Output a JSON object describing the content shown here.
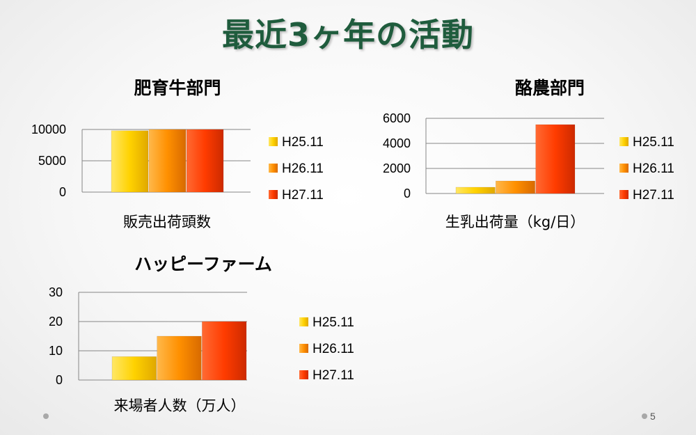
{
  "slide": {
    "title": "最近3ヶ年の活動",
    "page_number": "5"
  },
  "colors": {
    "title": "#1f5c3d",
    "series": [
      "#ffd200",
      "#ff9000",
      "#ff3c00"
    ]
  },
  "chart_data": [
    {
      "type": "bar",
      "title": "肥育牛部門",
      "xlabel": "販売出荷頭数",
      "ylabel": "",
      "ylim": [
        0,
        10000
      ],
      "yticks": [
        "0",
        "5000",
        "10000"
      ],
      "ytick_values": [
        0,
        5000,
        10000
      ],
      "categories": [
        "販売出荷頭数"
      ],
      "series": [
        {
          "name": "H25.11",
          "values": [
            9800
          ]
        },
        {
          "name": "H26.11",
          "values": [
            10000
          ]
        },
        {
          "name": "H27.11",
          "values": [
            10000
          ]
        }
      ],
      "legend": "right",
      "grid": true
    },
    {
      "type": "bar",
      "title": "酪農部門",
      "xlabel": "生乳出荷量（kg/日）",
      "ylabel": "",
      "ylim": [
        0,
        6000
      ],
      "yticks": [
        "0",
        "2000",
        "4000",
        "6000"
      ],
      "ytick_values": [
        0,
        2000,
        4000,
        6000
      ],
      "categories": [
        "生乳出荷量（kg/日）"
      ],
      "series": [
        {
          "name": "H25.11",
          "values": [
            500
          ]
        },
        {
          "name": "H26.11",
          "values": [
            1000
          ]
        },
        {
          "name": "H27.11",
          "values": [
            5500
          ]
        }
      ],
      "legend": "right",
      "grid": true
    },
    {
      "type": "bar",
      "title": "ハッピーファーム",
      "xlabel": "来場者人数（万人）",
      "ylabel": "",
      "ylim": [
        0,
        30
      ],
      "yticks": [
        "0",
        "10",
        "20",
        "30"
      ],
      "ytick_values": [
        0,
        10,
        20,
        30
      ],
      "categories": [
        "来場者人数（万人）"
      ],
      "series": [
        {
          "name": "H25.11",
          "values": [
            8
          ]
        },
        {
          "name": "H26.11",
          "values": [
            15
          ]
        },
        {
          "name": "H27.11",
          "values": [
            20
          ]
        }
      ],
      "legend": "right",
      "grid": true
    }
  ]
}
